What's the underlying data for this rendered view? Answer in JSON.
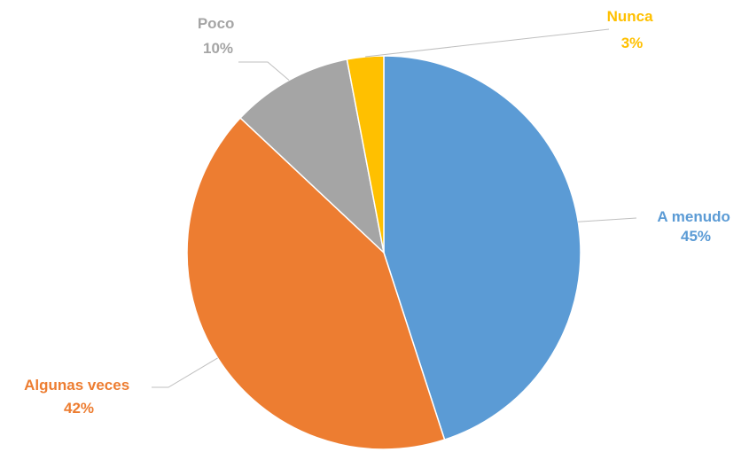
{
  "chart_data": {
    "type": "pie",
    "title": "",
    "start": "12 o'clock",
    "direction": "clockwise",
    "legend": "none",
    "labels": "outside with leader lines",
    "slices": [
      {
        "name": "A menudo",
        "value": 45,
        "label": "45%",
        "color": "#5b9bd5"
      },
      {
        "name": "Algunas veces",
        "value": 42,
        "label": "42%",
        "color": "#ed7d31"
      },
      {
        "name": "Poco",
        "value": 10,
        "label": "10%",
        "color": "#a5a5a5"
      },
      {
        "name": "Nunca",
        "value": 3,
        "label": "3%",
        "color": "#ffc000"
      }
    ]
  }
}
